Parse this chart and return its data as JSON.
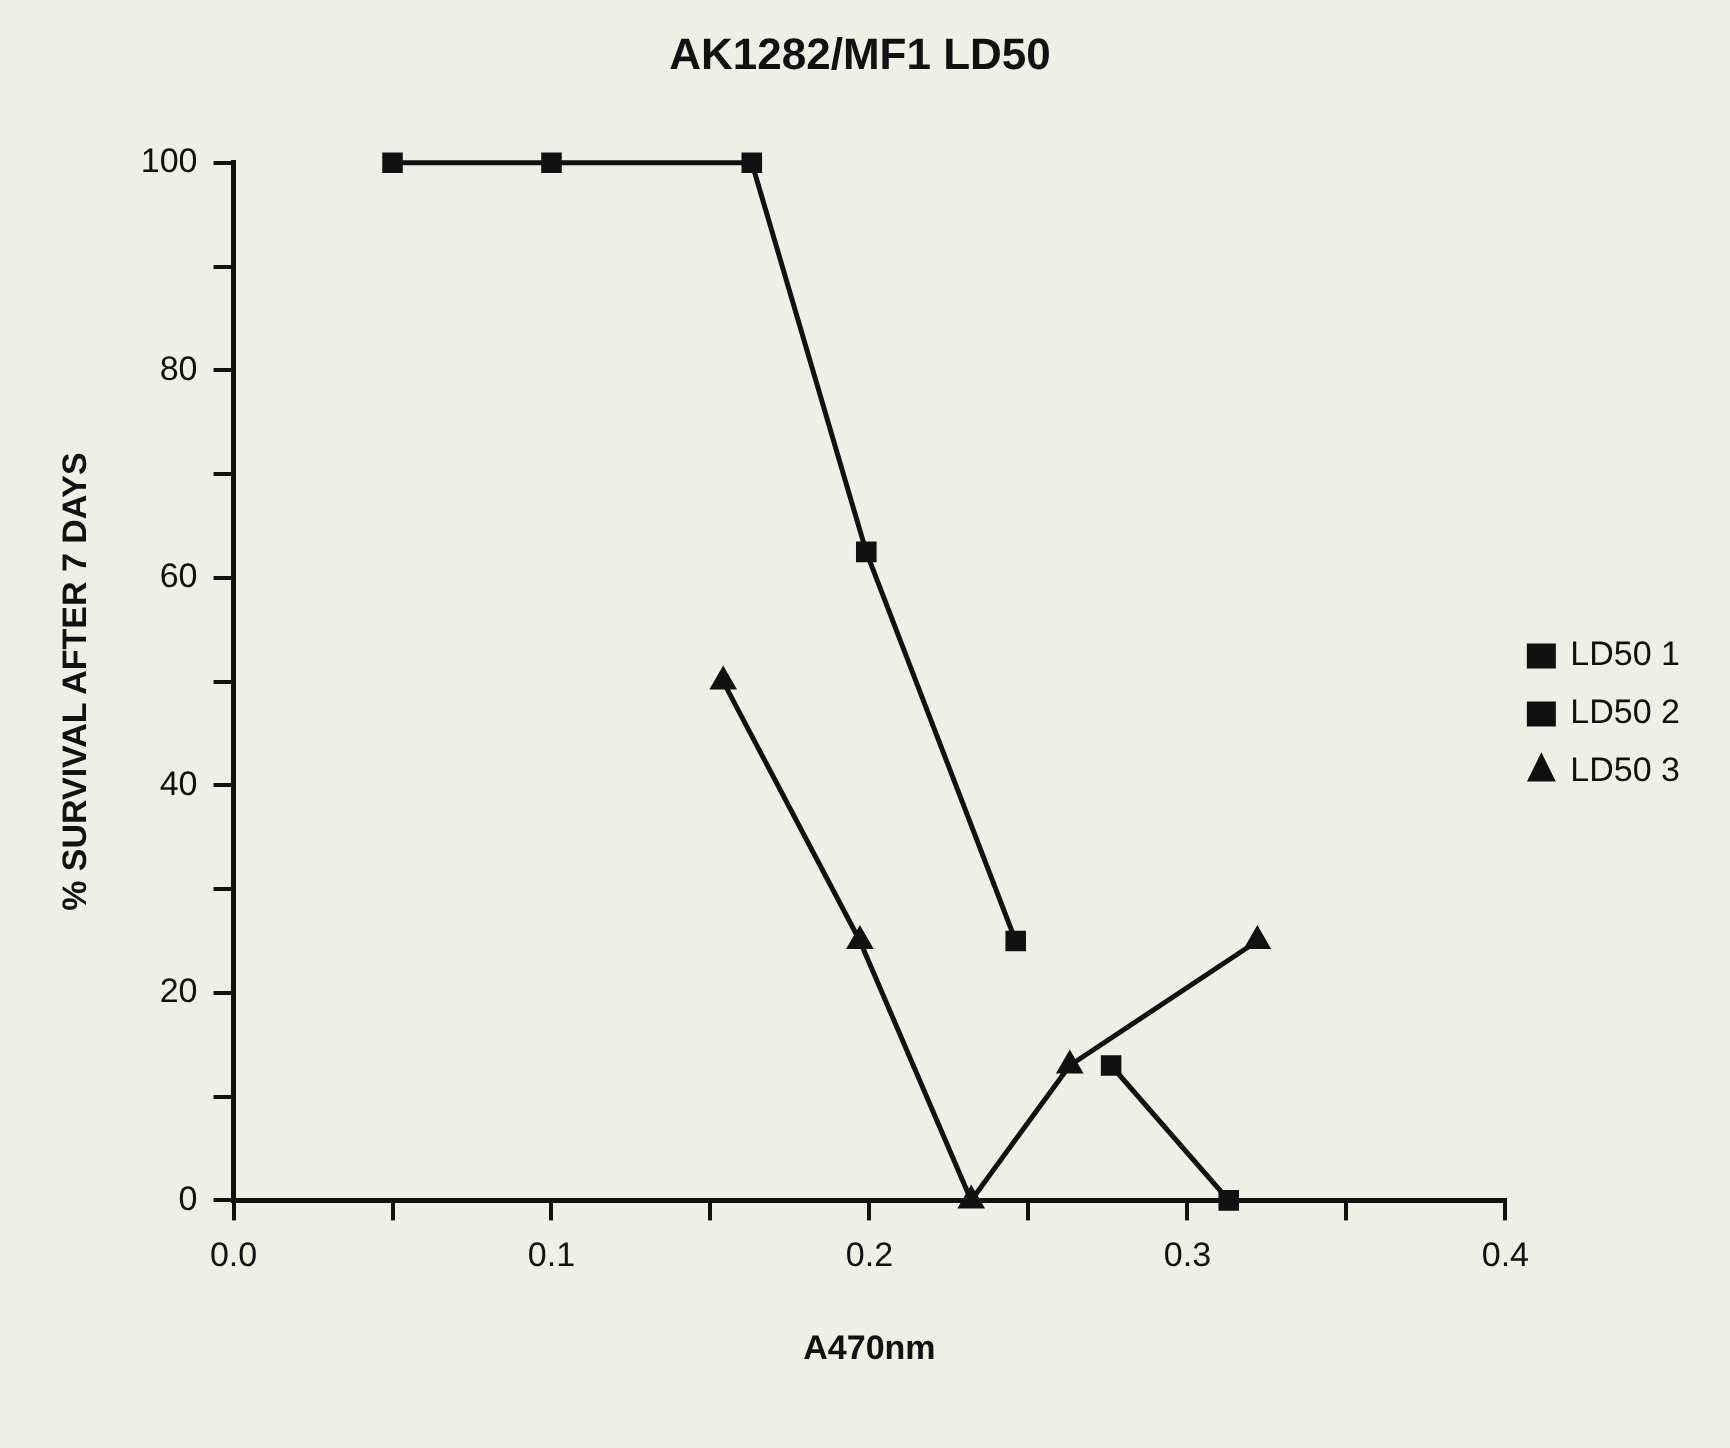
{
  "chart_data": {
    "type": "line",
    "title": "AK1282/MF1 LD50",
    "xlabel": "A470nm",
    "ylabel": "% SURVIVAL AFTER 7 DAYS",
    "xlim": [
      0,
      0.4
    ],
    "ylim": [
      0,
      100
    ],
    "xticks": [
      {
        "value": 0,
        "label": "0.0"
      },
      {
        "value": 0.05,
        "label": null
      },
      {
        "value": 0.1,
        "label": "0.1"
      },
      {
        "value": 0.15,
        "label": null
      },
      {
        "value": 0.2,
        "label": "0.2"
      },
      {
        "value": 0.25,
        "label": null
      },
      {
        "value": 0.3,
        "label": "0.3"
      },
      {
        "value": 0.35,
        "label": null
      },
      {
        "value": 0.4,
        "label": "0.4"
      }
    ],
    "yticks": [
      0,
      {
        "value": 10,
        "label": null
      },
      20,
      {
        "value": 30,
        "label": null
      },
      40,
      {
        "value": 50,
        "label": null
      },
      60,
      {
        "value": 70,
        "label": null
      },
      80,
      {
        "value": 90,
        "label": null
      },
      100
    ],
    "grid": false,
    "legend": "right",
    "series": [
      {
        "name": "LD50 1",
        "color": "#111111",
        "marker": "square",
        "x": [
          0.05,
          0.1,
          0.163,
          0.199,
          0.246
        ],
        "values": [
          100,
          100,
          100,
          62.5,
          25
        ]
      },
      {
        "name": "LD50 2",
        "color": "#111111",
        "marker": "square",
        "x": [
          0.276,
          0.313
        ],
        "values": [
          13,
          0
        ]
      },
      {
        "name": "LD50 3",
        "color": "#111111",
        "marker": "triangle",
        "x": [
          0.154,
          0.197,
          0.232,
          0.263,
          0.322
        ],
        "values": [
          50,
          25,
          0,
          13,
          25
        ]
      }
    ]
  }
}
